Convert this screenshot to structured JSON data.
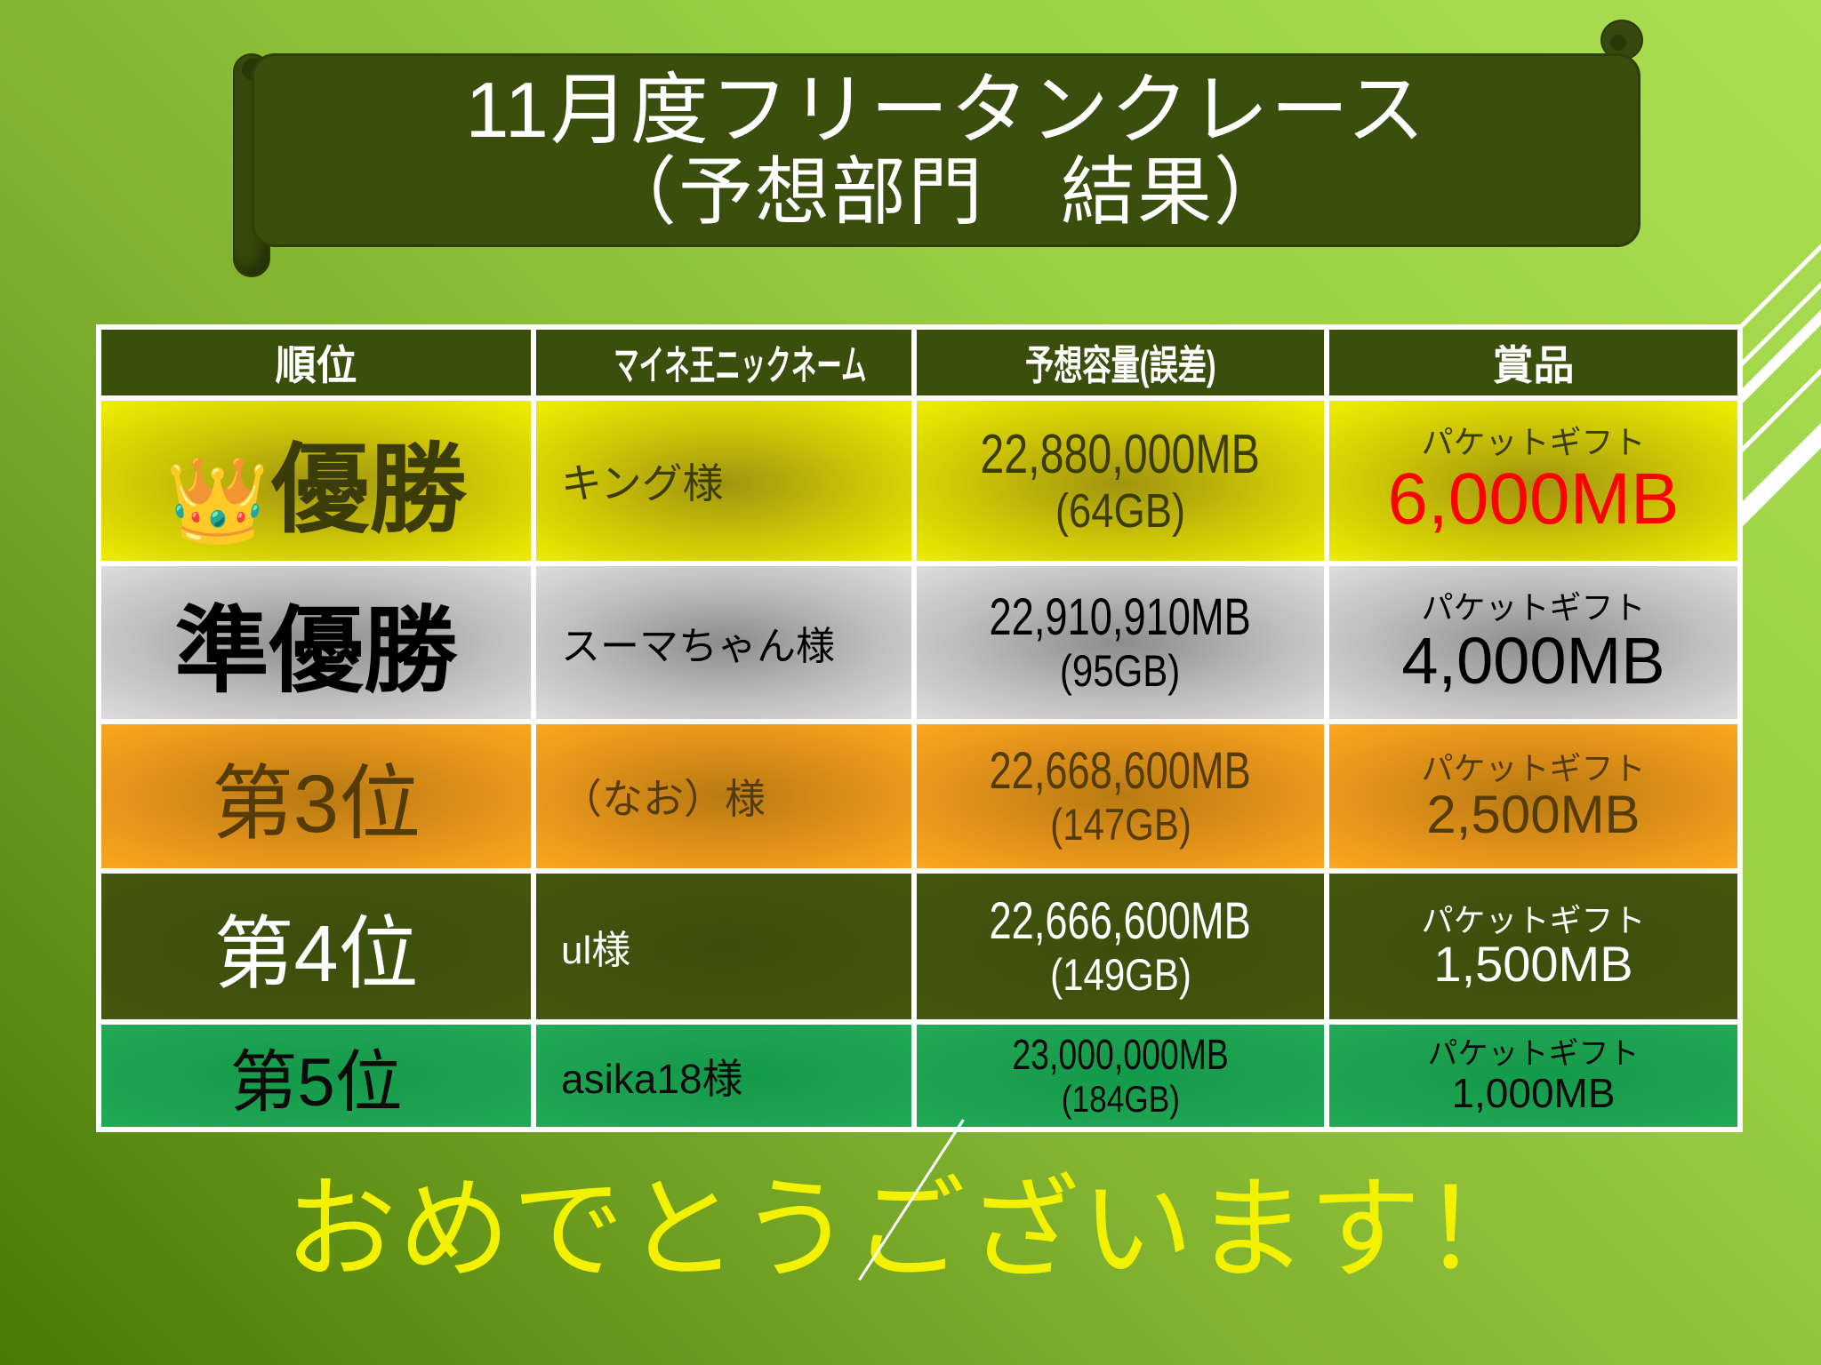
{
  "slide": {
    "title_line1": "11月度フリータンクレース",
    "title_line2": "（予想部門　結果）",
    "congrats_message": "おめでとうございます！"
  },
  "table": {
    "headers": {
      "rank": "順位",
      "nickname": "マイネ王ニックネーム",
      "capacity": "予想容量(誤差)",
      "prize": "賞品"
    },
    "rows": [
      {
        "rank_icon": "👑",
        "rank_label": "優勝",
        "nickname": "キング様",
        "capacity": "22,880,000MB",
        "capacity_error": "(64GB)",
        "prize_label": "パケットギフト",
        "prize_amount": "6,000MB"
      },
      {
        "rank_icon": "",
        "rank_label": "準優勝",
        "nickname": "スーマちゃん様",
        "capacity": "22,910,910MB",
        "capacity_error": "(95GB)",
        "prize_label": "パケットギフト",
        "prize_amount": "4,000MB"
      },
      {
        "rank_icon": "",
        "rank_label": "第3位",
        "nickname": "（なお）様",
        "capacity": "22,668,600MB",
        "capacity_error": "(147GB)",
        "prize_label": "パケットギフト",
        "prize_amount": "2,500MB"
      },
      {
        "rank_icon": "",
        "rank_label": "第4位",
        "nickname": "ul様",
        "capacity": "22,666,600MB",
        "capacity_error": "(149GB)",
        "prize_label": "パケットギフト",
        "prize_amount": "1,500MB"
      },
      {
        "rank_icon": "",
        "rank_label": "第5位",
        "nickname": "asika18様",
        "capacity": "23,000,000MB",
        "capacity_error": "(184GB)",
        "prize_label": "パケットギフト",
        "prize_amount": "1,000MB"
      }
    ]
  },
  "colors": {
    "background_top": "#acde52",
    "background_bottom": "#4a7a06",
    "banner_green": "#3a4f0e",
    "header_green": "#3b4f0d",
    "row_gold": "#ecec00",
    "row_silver": "#d9d9d9",
    "row_bronze": "#f9a51e",
    "row_darkgreen": "#42560e",
    "row_emerald": "#1ea452",
    "prize_red": "#ff0000",
    "congrats_yellow": "#f1f100",
    "grid_white": "#ffffff"
  }
}
